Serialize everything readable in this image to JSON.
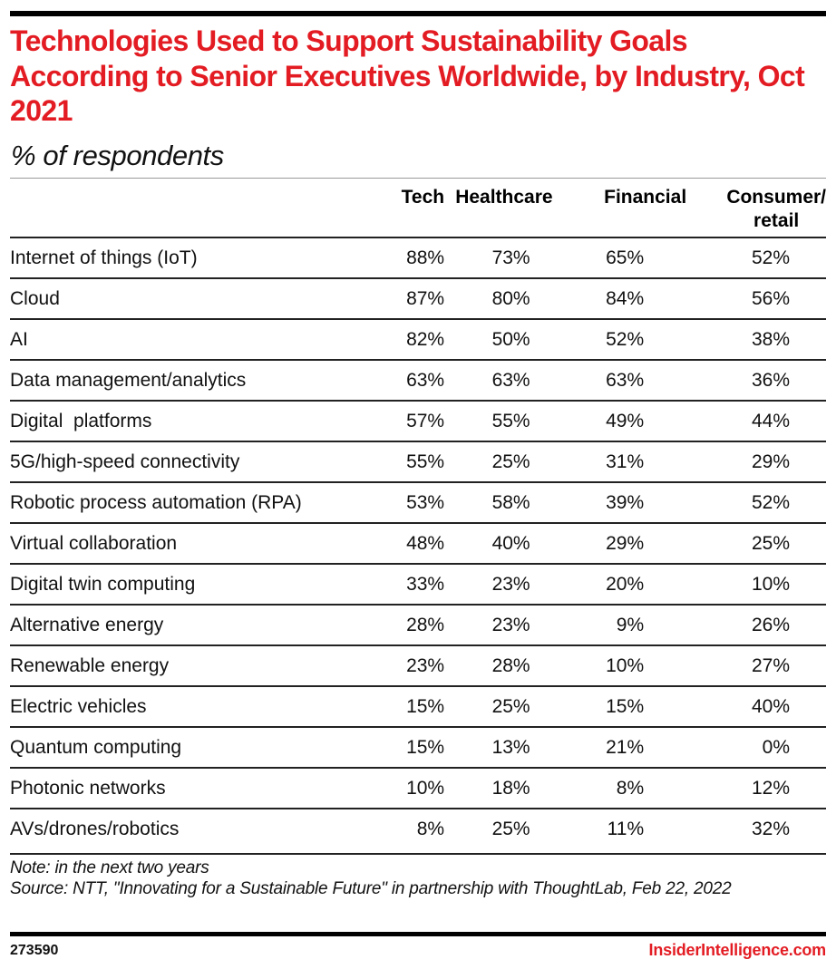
{
  "chart_data": {
    "type": "table",
    "title": "Technologies Used to Support Sustainability Goals According to Senior Executives Worldwide, by Industry, Oct 2021",
    "subtitle": "% of respondents",
    "columns": [
      "Tech",
      "Healthcare",
      "Financial",
      "Consumer/\nretail"
    ],
    "column_lines": [
      [
        "Tech"
      ],
      [
        "Healthcare"
      ],
      [
        "Financial"
      ],
      [
        "Consumer/",
        "retail"
      ]
    ],
    "unit": "%",
    "rows": [
      {
        "label": "Internet of things (IoT)",
        "values": [
          88,
          73,
          65,
          52
        ],
        "display": [
          "88%",
          "73%",
          "65%",
          "52%"
        ]
      },
      {
        "label": "Cloud",
        "values": [
          87,
          80,
          84,
          56
        ],
        "display": [
          "87%",
          "80%",
          "84%",
          "56%"
        ]
      },
      {
        "label": "AI",
        "values": [
          82,
          50,
          52,
          38
        ],
        "display": [
          "82%",
          "50%",
          "52%",
          "38%"
        ]
      },
      {
        "label": "Data management/analytics",
        "values": [
          63,
          63,
          63,
          36
        ],
        "display": [
          "63%",
          "63%",
          "63%",
          "36%"
        ]
      },
      {
        "label": "Digital  platforms",
        "values": [
          57,
          55,
          49,
          44
        ],
        "display": [
          "57%",
          "55%",
          "49%",
          "44%"
        ]
      },
      {
        "label": "5G/high-speed connectivity",
        "values": [
          55,
          25,
          31,
          29
        ],
        "display": [
          "55%",
          "25%",
          "31%",
          "29%"
        ]
      },
      {
        "label": "Robotic process automation (RPA)",
        "values": [
          53,
          58,
          39,
          52
        ],
        "display": [
          "53%",
          "58%",
          "39%",
          "52%"
        ]
      },
      {
        "label": "Virtual collaboration",
        "values": [
          48,
          40,
          29,
          25
        ],
        "display": [
          "48%",
          "40%",
          "29%",
          "25%"
        ]
      },
      {
        "label": "Digital twin computing",
        "values": [
          33,
          23,
          20,
          10
        ],
        "display": [
          "33%",
          "23%",
          "20%",
          "10%"
        ]
      },
      {
        "label": "Alternative energy",
        "values": [
          28,
          23,
          9,
          26
        ],
        "display": [
          "28%",
          "23%",
          "9%",
          "26%"
        ]
      },
      {
        "label": "Renewable energy",
        "values": [
          23,
          28,
          10,
          27
        ],
        "display": [
          "23%",
          "28%",
          "10%",
          "27%"
        ]
      },
      {
        "label": "Electric vehicles",
        "values": [
          15,
          25,
          15,
          40
        ],
        "display": [
          "15%",
          "25%",
          "15%",
          "40%"
        ]
      },
      {
        "label": "Quantum computing",
        "values": [
          15,
          13,
          21,
          0
        ],
        "display": [
          "15%",
          "13%",
          "21%",
          "0%"
        ]
      },
      {
        "label": "Photonic networks",
        "values": [
          10,
          18,
          8,
          12
        ],
        "display": [
          "10%",
          "18%",
          "8%",
          "12%"
        ]
      },
      {
        "label": "AVs/drones/robotics",
        "values": [
          8,
          25,
          11,
          32
        ],
        "display": [
          "8%",
          "25%",
          "11%",
          "32%"
        ]
      }
    ]
  },
  "header": {
    "title": "Technologies Used to Support Sustainability Goals According to Senior Executives Worldwide, by Industry, Oct 2021",
    "subtitle": "% of respondents"
  },
  "footer": {
    "note": "Note: in the next two years",
    "source": "Source: NTT, \"Innovating for a Sustainable Future\" in partnership with ThoughtLab, Feb 22, 2022",
    "chart_id": "273590",
    "brand": "InsiderIntelligence.com"
  },
  "colors": {
    "brand_red": "#e31c23",
    "text": "#111111",
    "rule": "#222222"
  }
}
